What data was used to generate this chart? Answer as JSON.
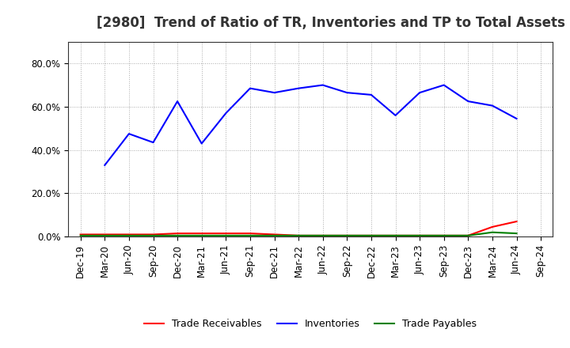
{
  "title": "[2980]  Trend of Ratio of TR, Inventories and TP to Total Assets",
  "x_labels": [
    "Dec-19",
    "Mar-20",
    "Jun-20",
    "Sep-20",
    "Dec-20",
    "Mar-21",
    "Jun-21",
    "Sep-21",
    "Dec-21",
    "Mar-22",
    "Jun-22",
    "Sep-22",
    "Dec-22",
    "Mar-23",
    "Jun-23",
    "Sep-23",
    "Dec-23",
    "Mar-24",
    "Jun-24",
    "Sep-24"
  ],
  "inventories": [
    null,
    33.0,
    47.5,
    43.5,
    62.5,
    43.0,
    57.0,
    68.5,
    66.5,
    68.5,
    70.0,
    66.5,
    65.5,
    56.0,
    66.5,
    70.0,
    62.5,
    60.5,
    54.5,
    null
  ],
  "trade_receivables": [
    1.0,
    1.0,
    1.0,
    1.0,
    1.5,
    1.5,
    1.5,
    1.5,
    1.0,
    0.5,
    0.5,
    0.5,
    0.5,
    0.5,
    0.5,
    0.5,
    0.5,
    4.5,
    7.0,
    null
  ],
  "trade_payables": [
    0.5,
    0.5,
    0.5,
    0.5,
    0.5,
    0.5,
    0.5,
    0.5,
    0.5,
    0.5,
    0.5,
    0.5,
    0.5,
    0.5,
    0.5,
    0.5,
    0.5,
    2.0,
    1.5,
    null
  ],
  "ylim": [
    0,
    90
  ],
  "yticks": [
    0,
    20,
    40,
    60,
    80
  ],
  "ytick_labels": [
    "0.0%",
    "20.0%",
    "40.0%",
    "60.0%",
    "80.0%"
  ],
  "line_colors": {
    "trade_receivables": "#ff0000",
    "inventories": "#0000ff",
    "trade_payables": "#008000"
  },
  "legend_labels": {
    "trade_receivables": "Trade Receivables",
    "inventories": "Inventories",
    "trade_payables": "Trade Payables"
  },
  "background_color": "#ffffff",
  "grid_color": "#aaaaaa",
  "title_fontsize": 12,
  "tick_fontsize": 8.5
}
